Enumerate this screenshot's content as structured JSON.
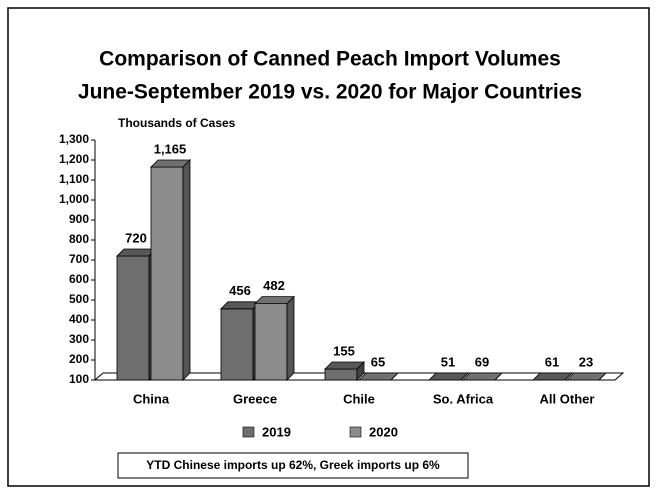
{
  "chart_data": {
    "type": "bar",
    "title": "Comparison of Canned Peach Import Volumes",
    "subtitle": "June-September 2019 vs. 2020 for Major Countries",
    "y_axis_label": "Thousands of Cases",
    "categories": [
      "China",
      "Greece",
      "Chile",
      "So. Africa",
      "All Other"
    ],
    "series": [
      {
        "name": "2019",
        "color": "#6e6e6e",
        "values": [
          720,
          456,
          155,
          51,
          61
        ],
        "value_labels": [
          "720",
          "456",
          "155",
          "51",
          "61"
        ]
      },
      {
        "name": "2020",
        "color": "#8c8c8c",
        "values": [
          1165,
          482,
          65,
          69,
          23
        ],
        "value_labels": [
          "1,165",
          "482",
          "65",
          "69",
          "23"
        ]
      }
    ],
    "ylim": [
      100,
      1300
    ],
    "yticks": [
      100,
      200,
      300,
      400,
      500,
      600,
      700,
      800,
      900,
      {
        "value": 1000,
        "label": "1,000"
      },
      {
        "value": 1100,
        "label": "1,100"
      },
      {
        "value": 1200,
        "label": "1,200"
      },
      {
        "value": 1300,
        "label": "1,300"
      }
    ],
    "annotation": "YTD Chinese imports up 62%,  Greek imports up 6%"
  }
}
